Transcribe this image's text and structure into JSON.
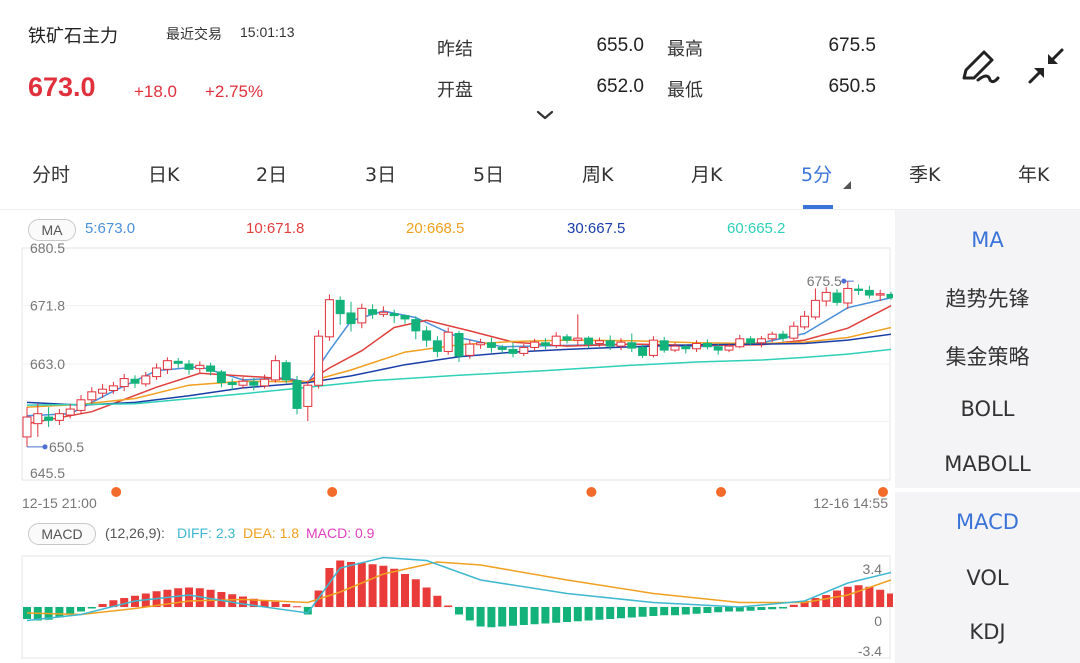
{
  "header": {
    "name": "铁矿石主力",
    "last_trade_label": "最近交易",
    "last_trade_time": "15:01:13",
    "price": "673.0",
    "change": "+18.0",
    "change_pct": "+2.75%",
    "quotes": {
      "prev_settle_label": "昨结",
      "prev_settle": "655.0",
      "open_label": "开盘",
      "open": "652.0",
      "high_label": "最高",
      "high": "675.5",
      "low_label": "最低",
      "low": "650.5"
    }
  },
  "tabs": [
    {
      "label": "分时"
    },
    {
      "label": "日K"
    },
    {
      "label": "2日"
    },
    {
      "label": "3日"
    },
    {
      "label": "5日"
    },
    {
      "label": "周K"
    },
    {
      "label": "月K"
    },
    {
      "label": "5分",
      "active": true
    },
    {
      "label": "季K"
    },
    {
      "label": "年K"
    }
  ],
  "right_panel": {
    "top": [
      "MA",
      "趋势先锋",
      "集金策略",
      "BOLL",
      "MABOLL"
    ],
    "bottom": [
      "MACD",
      "VOL",
      "KDJ"
    ]
  },
  "ma_legend": {
    "badge": "MA",
    "items": [
      {
        "label": "5:673.0",
        "color": "#4a90d9"
      },
      {
        "label": "10:671.8",
        "color": "#e0403c"
      },
      {
        "label": "20:668.5",
        "color": "#f0a020"
      },
      {
        "label": "30:667.5",
        "color": "#1a3fa8"
      },
      {
        "label": "60:665.2",
        "color": "#2fd0b8"
      }
    ]
  },
  "macd_legend": {
    "badge": "MACD",
    "params": "(12,26,9):",
    "diff": "DIFF: 2.3",
    "dea": "DEA: 1.8",
    "macd": "MACD: 0.9",
    "diff_color": "#3fb8d0",
    "dea_color": "#f0a020",
    "macd_color": "#e040c0"
  },
  "chart_data": [
    {
      "type": "candlestick",
      "y_ticks": [
        "680.5",
        "671.8",
        "663.0",
        "645.5"
      ],
      "ylim": [
        645.5,
        680.5
      ],
      "x_start_label": "12-15 21:00",
      "x_end_label": "12-16 14:55",
      "high_label": "675.5",
      "low_label": "650.5",
      "colors": {
        "up": "#e0303c",
        "down": "#12b27a"
      },
      "candles": [
        [
          652,
          655,
          650.5,
          656.5
        ],
        [
          654,
          655.5,
          652,
          657
        ],
        [
          655,
          654.5,
          653.5,
          656.5
        ],
        [
          654.5,
          655.5,
          653.8,
          656.2
        ],
        [
          655.3,
          656.2,
          654.8,
          657
        ],
        [
          656,
          657.6,
          655.5,
          658.3
        ],
        [
          657.6,
          658.8,
          657,
          659.5
        ],
        [
          658.6,
          659.2,
          657.9,
          660
        ],
        [
          659,
          659.7,
          658.5,
          660.3
        ],
        [
          659.6,
          660.8,
          658.9,
          661.5
        ],
        [
          660.7,
          660.1,
          659.4,
          661.3
        ],
        [
          660,
          661.2,
          659.6,
          661.8
        ],
        [
          661.1,
          662.4,
          660.6,
          663.1
        ],
        [
          662.2,
          663.5,
          661.5,
          664
        ],
        [
          663.4,
          663.1,
          662.4,
          663.9
        ],
        [
          663,
          662.2,
          661.4,
          663.6
        ],
        [
          662.3,
          662.8,
          661.7,
          663.4
        ],
        [
          662.7,
          661.9,
          661.3,
          663.2
        ],
        [
          661.8,
          660.2,
          659.5,
          662.1
        ],
        [
          660.2,
          659.9,
          659.1,
          660.8
        ],
        [
          659.8,
          660.4,
          659.3,
          661
        ],
        [
          660.3,
          659.8,
          659,
          660.9
        ],
        [
          659.7,
          660.7,
          659.3,
          661.4
        ],
        [
          660.6,
          663.5,
          660.2,
          664.3
        ],
        [
          663.2,
          660.6,
          660.1,
          663.6
        ],
        [
          660.5,
          656.3,
          655.4,
          661.2
        ],
        [
          656.6,
          659.8,
          654.4,
          660.5
        ],
        [
          659.8,
          667.2,
          659.3,
          668.1
        ],
        [
          667.1,
          672.7,
          666.5,
          673.5
        ],
        [
          672.6,
          670.6,
          668.9,
          673.2
        ],
        [
          670.7,
          669.1,
          667.9,
          672.4
        ],
        [
          669.2,
          671.4,
          668.4,
          672.1
        ],
        [
          671.2,
          670.5,
          669.8,
          672
        ],
        [
          670.5,
          670.8,
          670.1,
          671.7
        ],
        [
          670.6,
          670.3,
          669.2,
          671.2
        ],
        [
          670.3,
          669.8,
          669.1,
          670.5
        ],
        [
          669.7,
          668,
          666.7,
          670.2
        ],
        [
          668,
          666.6,
          665.6,
          668.7
        ],
        [
          666.5,
          664.9,
          664,
          667.2
        ],
        [
          664.9,
          667.8,
          664.4,
          668.5
        ],
        [
          667.6,
          664.2,
          663.3,
          668
        ],
        [
          664.3,
          666,
          663.8,
          666.7
        ],
        [
          665.9,
          666.2,
          665.3,
          666.8
        ],
        [
          666.2,
          665.5,
          664.7,
          667
        ],
        [
          665.5,
          665.2,
          664.6,
          665.9
        ],
        [
          665.2,
          664.6,
          664,
          666.2
        ],
        [
          664.6,
          665.5,
          664.2,
          666
        ],
        [
          665.5,
          666.3,
          665,
          666.8
        ],
        [
          666.2,
          665.8,
          665.2,
          666.9
        ],
        [
          665.8,
          667.2,
          665.4,
          667.8
        ],
        [
          667.1,
          666.6,
          666.1,
          667.5
        ],
        [
          666.6,
          666.9,
          665.8,
          670.5
        ],
        [
          666.9,
          666,
          665.4,
          667.2
        ],
        [
          666.1,
          666.5,
          665.6,
          667
        ],
        [
          666.5,
          665.7,
          665.1,
          667.3
        ],
        [
          665.7,
          666.3,
          665.1,
          666.9
        ],
        [
          666.2,
          665.4,
          664.8,
          667.6
        ],
        [
          665.5,
          664.3,
          663.9,
          665.9
        ],
        [
          664.3,
          666.6,
          664,
          667.2
        ],
        [
          666.5,
          665.1,
          664.7,
          667.1
        ],
        [
          665.1,
          665.7,
          664.8,
          666.2
        ],
        [
          665.6,
          665.3,
          664.6,
          665.9
        ],
        [
          665.3,
          666.1,
          664.8,
          666.6
        ],
        [
          666.1,
          665.6,
          665.2,
          666.7
        ],
        [
          665.6,
          665.1,
          664.4,
          666
        ],
        [
          665.1,
          665.7,
          664.8,
          666.1
        ],
        [
          665.6,
          666.8,
          665.4,
          667.4
        ],
        [
          666.8,
          666.2,
          665.8,
          667.2
        ],
        [
          666.2,
          666.8,
          665.5,
          667.2
        ],
        [
          666.8,
          667.5,
          666.3,
          667.9
        ],
        [
          667.5,
          666.9,
          666.4,
          668
        ],
        [
          666.9,
          668.7,
          666.6,
          669.4
        ],
        [
          668.6,
          670.2,
          668.2,
          671
        ],
        [
          670.1,
          672.6,
          669.7,
          674.4
        ],
        [
          672.5,
          673.8,
          671.7,
          674.6
        ],
        [
          673.7,
          672.3,
          671.8,
          674.3
        ],
        [
          672.2,
          674.4,
          671.3,
          675.5
        ],
        [
          674.3,
          674.1,
          673.4,
          675
        ],
        [
          674.1,
          673.4,
          672.9,
          674.8
        ],
        [
          673.4,
          673.6,
          672.5,
          674.2
        ],
        [
          673.5,
          673,
          672.7,
          673.9
        ]
      ],
      "ma_lines": {
        "ma5": [
          [
            0,
            655.2
          ],
          [
            4,
            655.5
          ],
          [
            8,
            658.9
          ],
          [
            12,
            662
          ],
          [
            16,
            662.6
          ],
          [
            20,
            660.6
          ],
          [
            24,
            660.9
          ],
          [
            26,
            660.2
          ],
          [
            28,
            665
          ],
          [
            30,
            669.5
          ],
          [
            33,
            671
          ],
          [
            36,
            670
          ],
          [
            40,
            667
          ],
          [
            44,
            665.6
          ],
          [
            50,
            665.8
          ],
          [
            56,
            666
          ],
          [
            62,
            665.6
          ],
          [
            68,
            666.2
          ],
          [
            72,
            667.6
          ],
          [
            76,
            671.5
          ],
          [
            80,
            673
          ]
        ],
        "ma10": [
          [
            0,
            654
          ],
          [
            6,
            655.8
          ],
          [
            12,
            659.5
          ],
          [
            16,
            661.6
          ],
          [
            22,
            661
          ],
          [
            26,
            660.3
          ],
          [
            28,
            662.4
          ],
          [
            31,
            665
          ],
          [
            34,
            668.5
          ],
          [
            37,
            669.6
          ],
          [
            41,
            668
          ],
          [
            45,
            666.3
          ],
          [
            50,
            665.7
          ],
          [
            56,
            666
          ],
          [
            62,
            665.8
          ],
          [
            68,
            665.9
          ],
          [
            72,
            666.6
          ],
          [
            76,
            668.4
          ],
          [
            80,
            671.8
          ]
        ],
        "ma20": [
          [
            0,
            656.5
          ],
          [
            5,
            656.9
          ],
          [
            10,
            657.8
          ],
          [
            15,
            659.8
          ],
          [
            20,
            660.4
          ],
          [
            26,
            660.3
          ],
          [
            30,
            662.1
          ],
          [
            35,
            664.8
          ],
          [
            40,
            665.9
          ],
          [
            45,
            666.4
          ],
          [
            50,
            666.6
          ],
          [
            56,
            666.5
          ],
          [
            62,
            666.2
          ],
          [
            68,
            666.1
          ],
          [
            72,
            666.3
          ],
          [
            76,
            667
          ],
          [
            80,
            668.5
          ]
        ],
        "ma30": [
          [
            0,
            657.2
          ],
          [
            5,
            656.8
          ],
          [
            10,
            657.2
          ],
          [
            15,
            658.2
          ],
          [
            20,
            659.4
          ],
          [
            26,
            660.2
          ],
          [
            30,
            661.2
          ],
          [
            35,
            662.9
          ],
          [
            40,
            664.1
          ],
          [
            45,
            664.8
          ],
          [
            50,
            665.2
          ],
          [
            56,
            665.6
          ],
          [
            62,
            665.9
          ],
          [
            68,
            666
          ],
          [
            72,
            666.1
          ],
          [
            76,
            666.6
          ],
          [
            80,
            667.5
          ]
        ],
        "ma60": [
          [
            0,
            656.8
          ],
          [
            10,
            657
          ],
          [
            20,
            658.5
          ],
          [
            26,
            659.5
          ],
          [
            32,
            660.5
          ],
          [
            40,
            661.3
          ],
          [
            48,
            662
          ],
          [
            56,
            662.8
          ],
          [
            62,
            663.3
          ],
          [
            68,
            663.6
          ],
          [
            72,
            664
          ],
          [
            76,
            664.5
          ],
          [
            80,
            665.2
          ]
        ]
      },
      "markers_at": [
        9,
        29,
        53,
        65,
        80
      ]
    },
    {
      "type": "macd",
      "y_ticks": [
        "3.4",
        "0",
        "-3.4"
      ],
      "ylim": [
        -3.4,
        3.4
      ],
      "hist": [
        -0.8,
        -0.9,
        -0.85,
        -0.7,
        -0.5,
        -0.3,
        -0.1,
        0.2,
        0.45,
        0.6,
        0.75,
        0.9,
        1.05,
        1.15,
        1.25,
        1.3,
        1.25,
        1.15,
        1.0,
        0.85,
        0.7,
        0.55,
        0.45,
        0.35,
        0.2,
        0.05,
        -0.5,
        1.1,
        2.6,
        3.1,
        3.0,
        2.95,
        2.85,
        2.75,
        2.55,
        2.2,
        1.85,
        1.3,
        0.75,
        0.1,
        -0.5,
        -0.9,
        -1.3,
        -1.35,
        -1.3,
        -1.25,
        -1.2,
        -1.15,
        -1.1,
        -1.05,
        -1.0,
        -0.95,
        -0.9,
        -0.85,
        -0.8,
        -0.75,
        -0.7,
        -0.65,
        -0.6,
        -0.55,
        -0.55,
        -0.5,
        -0.45,
        -0.4,
        -0.35,
        -0.3,
        -0.3,
        -0.25,
        -0.2,
        -0.15,
        -0.1,
        0.15,
        0.4,
        0.6,
        0.8,
        1.1,
        1.35,
        1.45,
        1.35,
        1.15,
        0.9
      ],
      "diff": [
        [
          0,
          -0.9
        ],
        [
          5,
          -0.5
        ],
        [
          10,
          0.4
        ],
        [
          15,
          0.8
        ],
        [
          20,
          0.2
        ],
        [
          26,
          -0.4
        ],
        [
          29,
          2.6
        ],
        [
          33,
          3.3
        ],
        [
          37,
          3.1
        ],
        [
          42,
          1.8
        ],
        [
          50,
          0.9
        ],
        [
          58,
          0.3
        ],
        [
          66,
          0.0
        ],
        [
          72,
          0.4
        ],
        [
          76,
          1.6
        ],
        [
          80,
          2.3
        ]
      ],
      "dea": [
        [
          0,
          -0.4
        ],
        [
          5,
          -0.5
        ],
        [
          10,
          -0.1
        ],
        [
          15,
          0.4
        ],
        [
          20,
          0.5
        ],
        [
          26,
          0.3
        ],
        [
          29,
          1.0
        ],
        [
          33,
          2.2
        ],
        [
          38,
          3.0
        ],
        [
          42,
          2.8
        ],
        [
          50,
          1.8
        ],
        [
          58,
          0.9
        ],
        [
          66,
          0.3
        ],
        [
          72,
          0.3
        ],
        [
          76,
          0.8
        ],
        [
          80,
          1.8
        ]
      ]
    }
  ]
}
